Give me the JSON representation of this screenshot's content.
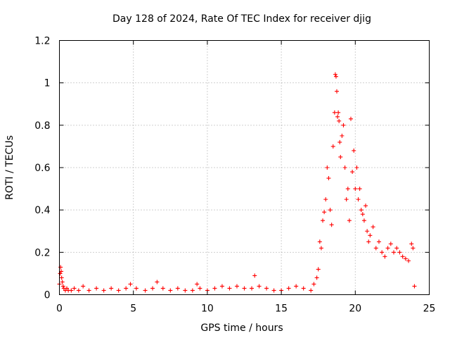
{
  "chart_data": {
    "type": "scatter",
    "title": "Day 128 of 2024, Rate Of TEC Index for receiver djig",
    "xlabel": "GPS time / hours",
    "ylabel": "ROTI / TECUs",
    "xlim": [
      0,
      25
    ],
    "ylim": [
      0,
      1.2
    ],
    "xticks": [
      0,
      5,
      10,
      15,
      20,
      25
    ],
    "yticks": [
      0,
      0.2,
      0.4,
      0.6,
      0.8,
      1,
      1.2
    ],
    "xtick_labels": [
      "0",
      "5",
      "10",
      "15",
      "20",
      "25"
    ],
    "ytick_labels": [
      "0",
      "0.2",
      "0.4",
      "0.6",
      "0.8",
      "1",
      "1.2"
    ],
    "grid": true,
    "marker": "+",
    "color": "#ff0000",
    "series": [
      {
        "name": "ROTI",
        "x": [
          0.0,
          0.05,
          0.08,
          0.12,
          0.15,
          0.2,
          0.25,
          0.3,
          0.4,
          0.5,
          0.6,
          0.8,
          1.0,
          1.3,
          1.6,
          2.0,
          2.5,
          3.0,
          3.5,
          4.0,
          4.5,
          4.8,
          5.2,
          5.8,
          6.3,
          6.6,
          7.0,
          7.5,
          8.0,
          8.5,
          9.0,
          9.3,
          9.5,
          10.0,
          10.5,
          11.0,
          11.5,
          12.0,
          12.5,
          13.0,
          13.2,
          13.5,
          14.0,
          14.5,
          15.0,
          15.5,
          16.0,
          16.5,
          17.0,
          17.2,
          17.4,
          17.5,
          17.6,
          17.7,
          17.8,
          17.9,
          18.0,
          18.1,
          18.2,
          18.3,
          18.4,
          18.5,
          18.6,
          18.65,
          18.7,
          18.75,
          18.8,
          18.85,
          18.9,
          18.95,
          19.0,
          19.1,
          19.2,
          19.3,
          19.4,
          19.5,
          19.6,
          19.7,
          19.8,
          19.9,
          20.0,
          20.1,
          20.2,
          20.3,
          20.4,
          20.5,
          20.6,
          20.7,
          20.8,
          20.9,
          21.0,
          21.2,
          21.4,
          21.6,
          21.8,
          22.0,
          22.2,
          22.4,
          22.6,
          22.8,
          23.0,
          23.2,
          23.4,
          23.6,
          23.8,
          23.9,
          24.0
        ],
        "y": [
          0.05,
          0.1,
          0.13,
          0.11,
          0.08,
          0.06,
          0.04,
          0.03,
          0.02,
          0.03,
          0.02,
          0.02,
          0.03,
          0.02,
          0.04,
          0.02,
          0.03,
          0.02,
          0.03,
          0.02,
          0.03,
          0.05,
          0.03,
          0.02,
          0.03,
          0.06,
          0.03,
          0.02,
          0.03,
          0.02,
          0.02,
          0.05,
          0.03,
          0.02,
          0.03,
          0.04,
          0.03,
          0.04,
          0.03,
          0.03,
          0.09,
          0.04,
          0.03,
          0.02,
          0.02,
          0.03,
          0.04,
          0.03,
          0.02,
          0.05,
          0.08,
          0.12,
          0.25,
          0.22,
          0.35,
          0.39,
          0.45,
          0.6,
          0.55,
          0.4,
          0.33,
          0.7,
          0.86,
          1.04,
          1.03,
          0.96,
          0.84,
          0.86,
          0.82,
          0.72,
          0.65,
          0.75,
          0.8,
          0.6,
          0.45,
          0.5,
          0.35,
          0.83,
          0.58,
          0.68,
          0.5,
          0.6,
          0.45,
          0.5,
          0.4,
          0.38,
          0.35,
          0.42,
          0.3,
          0.25,
          0.28,
          0.32,
          0.22,
          0.25,
          0.2,
          0.18,
          0.22,
          0.24,
          0.2,
          0.22,
          0.2,
          0.18,
          0.17,
          0.16,
          0.24,
          0.22,
          0.04
        ]
      }
    ]
  }
}
